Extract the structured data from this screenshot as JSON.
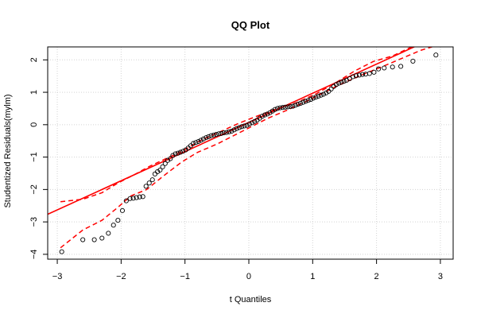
{
  "colors": {
    "points": "#000000",
    "reference_line": "#ff0000",
    "envelope": "#ff0000",
    "grid": "#d3d3d3",
    "frame": "#000000"
  },
  "chart_data": {
    "type": "scatter",
    "title": "QQ Plot",
    "xlabel": "t Quantiles",
    "ylabel": "Studentized Residuals(mylm)",
    "xlim": [
      -3.15,
      3.2
    ],
    "ylim": [
      -4.15,
      2.4
    ],
    "x_ticks": [
      -3,
      -2,
      -1,
      0,
      1,
      2,
      3
    ],
    "y_ticks": [
      -4,
      -3,
      -2,
      -1,
      0,
      1,
      2
    ],
    "x_tick_labels": [
      "−3",
      "−2",
      "−1",
      "0",
      "1",
      "2",
      "3"
    ],
    "y_tick_labels": [
      "−4",
      "−3",
      "−2",
      "−1",
      "0",
      "1",
      "2"
    ],
    "grid": true,
    "legend": "none",
    "points": [
      {
        "x": -2.93,
        "y": -3.92
      },
      {
        "x": -2.6,
        "y": -3.55
      },
      {
        "x": -2.42,
        "y": -3.55
      },
      {
        "x": -2.3,
        "y": -3.5
      },
      {
        "x": -2.2,
        "y": -3.35
      },
      {
        "x": -2.12,
        "y": -3.1
      },
      {
        "x": -2.05,
        "y": -2.95
      },
      {
        "x": -1.98,
        "y": -2.65
      },
      {
        "x": -1.92,
        "y": -2.35
      },
      {
        "x": -1.86,
        "y": -2.28
      },
      {
        "x": -1.81,
        "y": -2.27
      },
      {
        "x": -1.76,
        "y": -2.25
      },
      {
        "x": -1.71,
        "y": -2.23
      },
      {
        "x": -1.66,
        "y": -2.22
      },
      {
        "x": -1.61,
        "y": -1.9
      },
      {
        "x": -1.56,
        "y": -1.8
      },
      {
        "x": -1.51,
        "y": -1.7
      },
      {
        "x": -1.47,
        "y": -1.52
      },
      {
        "x": -1.43,
        "y": -1.45
      },
      {
        "x": -1.39,
        "y": -1.4
      },
      {
        "x": -1.35,
        "y": -1.3
      },
      {
        "x": -1.31,
        "y": -1.2
      },
      {
        "x": -1.27,
        "y": -1.1
      },
      {
        "x": -1.23,
        "y": -1.05
      },
      {
        "x": -1.19,
        "y": -0.95
      },
      {
        "x": -1.15,
        "y": -0.9
      },
      {
        "x": -1.11,
        "y": -0.88
      },
      {
        "x": -1.07,
        "y": -0.85
      },
      {
        "x": -1.03,
        "y": -0.82
      },
      {
        "x": -0.99,
        "y": -0.78
      },
      {
        "x": -0.95,
        "y": -0.72
      },
      {
        "x": -0.91,
        "y": -0.65
      },
      {
        "x": -0.87,
        "y": -0.58
      },
      {
        "x": -0.83,
        "y": -0.55
      },
      {
        "x": -0.79,
        "y": -0.52
      },
      {
        "x": -0.75,
        "y": -0.48
      },
      {
        "x": -0.71,
        "y": -0.44
      },
      {
        "x": -0.67,
        "y": -0.4
      },
      {
        "x": -0.63,
        "y": -0.37
      },
      {
        "x": -0.59,
        "y": -0.34
      },
      {
        "x": -0.55,
        "y": -0.32
      },
      {
        "x": -0.51,
        "y": -0.3
      },
      {
        "x": -0.47,
        "y": -0.28
      },
      {
        "x": -0.43,
        "y": -0.27
      },
      {
        "x": -0.39,
        "y": -0.25
      },
      {
        "x": -0.35,
        "y": -0.24
      },
      {
        "x": -0.31,
        "y": -0.22
      },
      {
        "x": -0.27,
        "y": -0.2
      },
      {
        "x": -0.23,
        "y": -0.16
      },
      {
        "x": -0.19,
        "y": -0.12
      },
      {
        "x": -0.15,
        "y": -0.09
      },
      {
        "x": -0.11,
        "y": -0.06
      },
      {
        "x": -0.07,
        "y": -0.04
      },
      {
        "x": -0.03,
        "y": -0.02
      },
      {
        "x": 0.01,
        "y": 0.02
      },
      {
        "x": 0.05,
        "y": 0.06
      },
      {
        "x": 0.09,
        "y": 0.1
      },
      {
        "x": 0.13,
        "y": 0.14
      },
      {
        "x": 0.17,
        "y": 0.2
      },
      {
        "x": 0.21,
        "y": 0.26
      },
      {
        "x": 0.25,
        "y": 0.3
      },
      {
        "x": 0.29,
        "y": 0.33
      },
      {
        "x": 0.33,
        "y": 0.37
      },
      {
        "x": 0.37,
        "y": 0.42
      },
      {
        "x": 0.41,
        "y": 0.47
      },
      {
        "x": 0.45,
        "y": 0.5
      },
      {
        "x": 0.49,
        "y": 0.52
      },
      {
        "x": 0.53,
        "y": 0.53
      },
      {
        "x": 0.57,
        "y": 0.54
      },
      {
        "x": 0.61,
        "y": 0.55
      },
      {
        "x": 0.65,
        "y": 0.56
      },
      {
        "x": 0.69,
        "y": 0.57
      },
      {
        "x": 0.73,
        "y": 0.6
      },
      {
        "x": 0.77,
        "y": 0.63
      },
      {
        "x": 0.81,
        "y": 0.66
      },
      {
        "x": 0.85,
        "y": 0.69
      },
      {
        "x": 0.89,
        "y": 0.72
      },
      {
        "x": 0.93,
        "y": 0.75
      },
      {
        "x": 0.97,
        "y": 0.78
      },
      {
        "x": 1.01,
        "y": 0.82
      },
      {
        "x": 1.05,
        "y": 0.85
      },
      {
        "x": 1.09,
        "y": 0.88
      },
      {
        "x": 1.13,
        "y": 0.91
      },
      {
        "x": 1.17,
        "y": 0.94
      },
      {
        "x": 1.21,
        "y": 0.98
      },
      {
        "x": 1.25,
        "y": 1.03
      },
      {
        "x": 1.29,
        "y": 1.1
      },
      {
        "x": 1.33,
        "y": 1.18
      },
      {
        "x": 1.37,
        "y": 1.24
      },
      {
        "x": 1.41,
        "y": 1.28
      },
      {
        "x": 1.45,
        "y": 1.31
      },
      {
        "x": 1.49,
        "y": 1.34
      },
      {
        "x": 1.53,
        "y": 1.37
      },
      {
        "x": 1.58,
        "y": 1.42
      },
      {
        "x": 1.63,
        "y": 1.48
      },
      {
        "x": 1.68,
        "y": 1.51
      },
      {
        "x": 1.73,
        "y": 1.53
      },
      {
        "x": 1.78,
        "y": 1.55
      },
      {
        "x": 1.83,
        "y": 1.56
      },
      {
        "x": 1.89,
        "y": 1.58
      },
      {
        "x": 1.96,
        "y": 1.62
      },
      {
        "x": 2.03,
        "y": 1.72
      },
      {
        "x": 2.12,
        "y": 1.75
      },
      {
        "x": 2.25,
        "y": 1.78
      },
      {
        "x": 2.38,
        "y": 1.8
      },
      {
        "x": 2.57,
        "y": 1.96
      },
      {
        "x": 2.93,
        "y": 2.15
      }
    ],
    "reference_line": {
      "intercept": 0.07,
      "slope": 0.9
    },
    "envelope_lower": [
      {
        "x": -2.95,
        "y": -3.8
      },
      {
        "x": -2.6,
        "y": -3.25
      },
      {
        "x": -2.3,
        "y": -2.95
      },
      {
        "x": -2.05,
        "y": -2.55
      },
      {
        "x": -1.85,
        "y": -2.2
      },
      {
        "x": -1.6,
        "y": -2.0
      },
      {
        "x": -1.35,
        "y": -1.6
      },
      {
        "x": -1.05,
        "y": -1.15
      },
      {
        "x": -0.8,
        "y": -0.85
      },
      {
        "x": -0.5,
        "y": -0.6
      },
      {
        "x": -0.2,
        "y": -0.3
      },
      {
        "x": 0.05,
        "y": -0.05
      },
      {
        "x": 0.3,
        "y": 0.2
      },
      {
        "x": 0.6,
        "y": 0.45
      },
      {
        "x": 0.9,
        "y": 0.72
      },
      {
        "x": 1.2,
        "y": 1.02
      },
      {
        "x": 1.5,
        "y": 1.3
      },
      {
        "x": 1.8,
        "y": 1.56
      },
      {
        "x": 2.1,
        "y": 1.8
      },
      {
        "x": 2.4,
        "y": 2.05
      },
      {
        "x": 2.7,
        "y": 2.3
      },
      {
        "x": 2.95,
        "y": 2.45
      }
    ],
    "envelope_upper": [
      {
        "x": -2.95,
        "y": -2.38
      },
      {
        "x": -2.6,
        "y": -2.3
      },
      {
        "x": -2.3,
        "y": -2.1
      },
      {
        "x": -2.05,
        "y": -1.8
      },
      {
        "x": -1.8,
        "y": -1.55
      },
      {
        "x": -1.55,
        "y": -1.28
      },
      {
        "x": -1.3,
        "y": -1.05
      },
      {
        "x": -1.05,
        "y": -0.82
      },
      {
        "x": -0.75,
        "y": -0.48
      },
      {
        "x": -0.45,
        "y": -0.22
      },
      {
        "x": -0.15,
        "y": 0.05
      },
      {
        "x": 0.15,
        "y": 0.28
      },
      {
        "x": 0.45,
        "y": 0.5
      },
      {
        "x": 0.75,
        "y": 0.68
      },
      {
        "x": 1.05,
        "y": 0.95
      },
      {
        "x": 1.35,
        "y": 1.28
      },
      {
        "x": 1.65,
        "y": 1.65
      },
      {
        "x": 1.95,
        "y": 1.95
      },
      {
        "x": 2.25,
        "y": 2.12
      },
      {
        "x": 2.55,
        "y": 2.4
      }
    ]
  }
}
